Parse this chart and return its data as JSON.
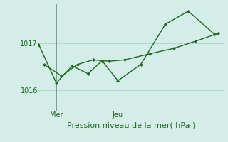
{
  "title": "Pression niveau de la mer( hPa )",
  "bg_color": "#d4ede8",
  "grid_color": "#add4cc",
  "line_color": "#1a6b1a",
  "yticks": [
    1016,
    1017
  ],
  "ylim": [
    1015.55,
    1017.85
  ],
  "xlim": [
    0,
    10.5
  ],
  "xtick_labels": [
    "Mer",
    "Jeu"
  ],
  "xtick_positions": [
    1.0,
    4.5
  ],
  "ver_line_x": [
    1.0,
    4.5
  ],
  "series1_x": [
    0.0,
    1.0,
    1.9,
    2.8,
    3.6,
    4.5,
    5.8,
    7.2,
    8.5,
    10.0
  ],
  "series1_y": [
    1016.98,
    1016.15,
    1016.52,
    1016.35,
    1016.63,
    1016.2,
    1016.55,
    1017.42,
    1017.7,
    1017.2
  ],
  "series2_x": [
    0.3,
    1.3,
    2.2,
    3.1,
    4.0,
    4.9,
    6.3,
    7.7,
    8.9,
    10.2
  ],
  "series2_y": [
    1016.55,
    1016.3,
    1016.55,
    1016.65,
    1016.62,
    1016.65,
    1016.78,
    1016.9,
    1017.05,
    1017.22
  ],
  "marker_size": 2.5,
  "linewidth": 1.0,
  "xlabel_fontsize": 8,
  "ytick_fontsize": 7,
  "xtick_fontsize": 7
}
